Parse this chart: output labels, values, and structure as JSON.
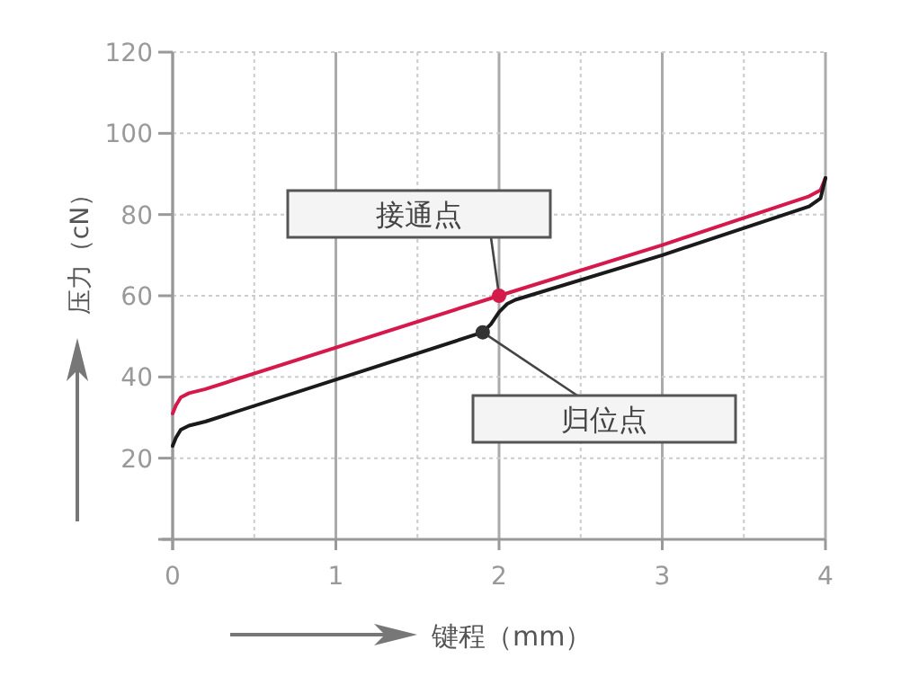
{
  "chart_data": {
    "type": "line",
    "xlabel": "键程（mm）",
    "ylabel": "压力（cN）",
    "xlim": [
      0,
      4
    ],
    "xticks": [
      0,
      1,
      2,
      3,
      4
    ],
    "ylim": [
      0,
      120
    ],
    "yticks": [
      {
        "value": 0,
        "label": null
      },
      20,
      40,
      60,
      80,
      100,
      120
    ],
    "grid": true,
    "marker": "none",
    "line_style": "solid",
    "series": [
      {
        "color": "#d6194b",
        "x": [
          0,
          0.02,
          0.05,
          0.1,
          0.2,
          2,
          3,
          3.9,
          3.97,
          4
        ],
        "values": [
          31,
          33,
          35,
          36,
          37,
          60,
          72.5,
          84.5,
          86,
          89
        ]
      },
      {
        "color": "#1a1a1a",
        "x": [
          0,
          0.02,
          0.05,
          0.1,
          0.2,
          1.9,
          1.95,
          2,
          2.05,
          2.1,
          3,
          3.9,
          3.97,
          4
        ],
        "values": [
          23,
          25,
          27,
          28,
          29,
          51,
          53,
          56,
          58,
          59,
          70,
          82,
          84,
          89
        ]
      }
    ],
    "annotations": [
      {
        "text": "接通点",
        "x": 2,
        "y": 60
      },
      {
        "text": "归位点",
        "x": 1.9,
        "y": 51
      }
    ]
  }
}
